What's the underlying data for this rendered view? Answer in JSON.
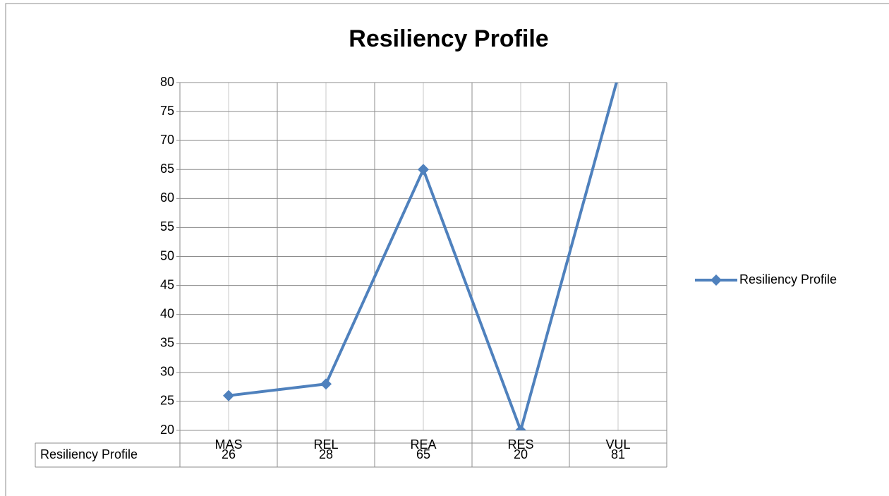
{
  "chart_data": {
    "type": "line",
    "title": "Resiliency Profile",
    "categories": [
      "MAS",
      "REL",
      "REA",
      "RES",
      "VUL"
    ],
    "series": [
      {
        "name": "Resiliency Profile",
        "color": "#4f81bd",
        "values": [
          26,
          28,
          65,
          20,
          81
        ]
      }
    ],
    "ylim": [
      20,
      80
    ],
    "yticks": [
      20,
      25,
      30,
      35,
      40,
      45,
      50,
      55,
      60,
      65,
      70,
      75,
      80
    ],
    "grid": true,
    "legend": "right",
    "data_table": true
  }
}
